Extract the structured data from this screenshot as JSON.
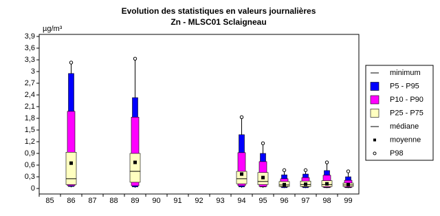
{
  "chart_data": {
    "type": "box",
    "title": "Evolution des statistiques en valeurs journalières",
    "subtitle": "Zn - MLSC01 Sclaigneau",
    "y_label": "µg/m³",
    "categories": [
      "85",
      "86",
      "87",
      "88",
      "89",
      "90",
      "91",
      "92",
      "93",
      "94",
      "95",
      "96",
      "97",
      "98",
      "99"
    ],
    "ylim": [
      0,
      3.9
    ],
    "yticks": [
      0,
      {
        "value": 0.3,
        "label": "0,3"
      },
      {
        "value": 0.6,
        "label": "0,6"
      },
      {
        "value": 0.9,
        "label": "0,9"
      },
      {
        "value": 1.2,
        "label": "1,2"
      },
      {
        "value": 1.5,
        "label": "1,5"
      },
      {
        "value": 1.8,
        "label": "1,8"
      },
      {
        "value": 2.1,
        "label": "2,1"
      },
      {
        "value": 2.4,
        "label": "2,4"
      },
      {
        "value": 2.7,
        "label": "2,7"
      },
      3,
      {
        "value": 3.3,
        "label": "3,3"
      },
      {
        "value": 3.6,
        "label": "3,6"
      },
      {
        "value": 3.9,
        "label": "3,9"
      }
    ],
    "series": [
      {
        "name": "minimum",
        "color": "#000000",
        "values": [
          null,
          0.03,
          null,
          null,
          0.02,
          null,
          null,
          null,
          null,
          0.02,
          0.02,
          0.01,
          0.01,
          0.01,
          0.01
        ]
      },
      {
        "name": "P5 - P95",
        "color": "#0000ff",
        "low": [
          null,
          0.05,
          null,
          null,
          0.04,
          null,
          null,
          null,
          null,
          0.04,
          0.04,
          0.02,
          0.02,
          0.02,
          0.02
        ],
        "high": [
          null,
          2.95,
          null,
          null,
          2.33,
          null,
          null,
          null,
          null,
          1.38,
          0.9,
          0.35,
          0.37,
          0.46,
          0.3
        ]
      },
      {
        "name": "P10 - P90",
        "color": "#ff00ff",
        "low": [
          null,
          0.07,
          null,
          null,
          0.07,
          null,
          null,
          null,
          null,
          0.07,
          0.05,
          0.04,
          0.04,
          0.03,
          0.03
        ],
        "high": [
          null,
          1.98,
          null,
          null,
          1.83,
          null,
          null,
          null,
          null,
          0.92,
          0.69,
          0.25,
          0.28,
          0.34,
          0.21
        ]
      },
      {
        "name": "P25 - P75",
        "color": "#ffffc0",
        "low": [
          null,
          0.1,
          null,
          null,
          0.16,
          null,
          null,
          null,
          null,
          0.12,
          0.1,
          0.05,
          0.05,
          0.05,
          0.05
        ],
        "high": [
          null,
          0.93,
          null,
          null,
          0.9,
          null,
          null,
          null,
          null,
          0.44,
          0.41,
          0.18,
          0.19,
          0.2,
          0.14
        ]
      },
      {
        "name": "médiane",
        "color": "#000000",
        "values": [
          null,
          0.25,
          null,
          null,
          0.44,
          null,
          null,
          null,
          null,
          0.25,
          0.18,
          0.09,
          0.1,
          0.1,
          0.09
        ]
      },
      {
        "name": "moyenne",
        "color": "#000000",
        "values": [
          null,
          0.65,
          null,
          null,
          0.67,
          null,
          null,
          null,
          null,
          0.37,
          0.28,
          0.1,
          0.11,
          0.12,
          0.1
        ]
      },
      {
        "name": "P98",
        "color": "#ffffff",
        "values": [
          null,
          3.23,
          null,
          null,
          3.33,
          null,
          null,
          null,
          null,
          1.83,
          1.16,
          0.47,
          0.47,
          0.67,
          0.44
        ]
      }
    ]
  }
}
